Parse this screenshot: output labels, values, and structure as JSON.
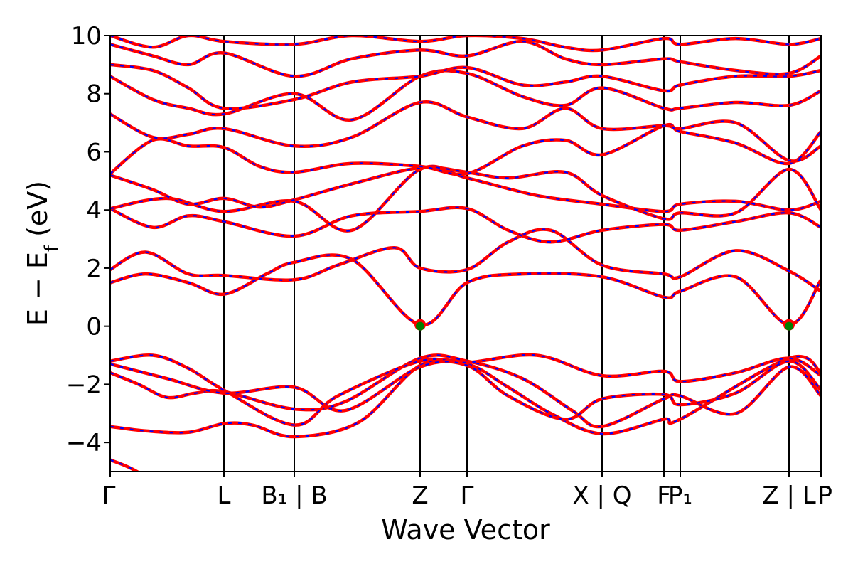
{
  "chart_data": {
    "type": "line",
    "title": "",
    "xlabel": "Wave Vector",
    "ylabel": {
      "main": "E − E",
      "sub": "f",
      "unit": " (eV)"
    },
    "ylim": [
      -5,
      10
    ],
    "yticks": [
      -4,
      -2,
      0,
      2,
      4,
      6,
      8,
      10
    ],
    "xlim": [
      0,
      1
    ],
    "grid": false,
    "legend": "none",
    "colors": {
      "band_main": "#ff0000",
      "band_overlay": "#0000ff",
      "vline": "#000000",
      "point_outer": "#ff0000",
      "point_inner": "#008000"
    },
    "kpoints": [
      {
        "x": 0.0,
        "label": "Γ"
      },
      {
        "x": 0.16,
        "label": "L"
      },
      {
        "x": 0.259,
        "label": "B₁ | B"
      },
      {
        "x": 0.436,
        "label": "Z"
      },
      {
        "x": 0.502,
        "label": "Γ"
      },
      {
        "x": 0.692,
        "label": "X | Q"
      },
      {
        "x": 0.779,
        "label": "F"
      },
      {
        "x": 0.802,
        "label": "P₁"
      },
      {
        "x": 0.955,
        "label": "Z | L"
      },
      {
        "x": 1.0,
        "label": "P"
      }
    ],
    "special_points": [
      {
        "x": 0.436,
        "y": 0.05
      },
      {
        "x": 0.955,
        "y": 0.05
      }
    ],
    "bands": [
      [
        [
          0.0,
          -4.6
        ],
        [
          0.03,
          -4.9
        ],
        [
          0.08,
          -5.6
        ]
      ],
      [
        [
          0.0,
          -3.45
        ],
        [
          0.05,
          -3.6
        ],
        [
          0.11,
          -3.65
        ],
        [
          0.16,
          -3.35
        ],
        [
          0.2,
          -3.4
        ],
        [
          0.259,
          -3.8
        ],
        [
          0.35,
          -3.3
        ],
        [
          0.436,
          -1.35
        ],
        [
          0.502,
          -1.3
        ],
        [
          0.56,
          -2.1
        ],
        [
          0.62,
          -3.0
        ],
        [
          0.692,
          -3.7
        ],
        [
          0.779,
          -3.2
        ],
        [
          0.802,
          -3.2
        ],
        [
          0.955,
          -1.1
        ],
        [
          1.0,
          -1.6
        ]
      ],
      [
        [
          0.0,
          -1.6
        ],
        [
          0.04,
          -2.0
        ],
        [
          0.08,
          -2.45
        ],
        [
          0.12,
          -2.3
        ],
        [
          0.16,
          -2.25
        ],
        [
          0.259,
          -2.85
        ],
        [
          0.33,
          -2.6
        ],
        [
          0.436,
          -1.1
        ],
        [
          0.502,
          -1.2
        ],
        [
          0.58,
          -1.8
        ],
        [
          0.65,
          -2.9
        ],
        [
          0.692,
          -3.45
        ],
        [
          0.779,
          -2.5
        ],
        [
          0.802,
          -2.4
        ],
        [
          0.88,
          -3.0
        ],
        [
          0.955,
          -1.4
        ],
        [
          1.0,
          -2.4
        ]
      ],
      [
        [
          0.0,
          -1.2
        ],
        [
          0.06,
          -1.0
        ],
        [
          0.11,
          -1.45
        ],
        [
          0.16,
          -2.2
        ],
        [
          0.259,
          -3.4
        ],
        [
          0.32,
          -2.4
        ],
        [
          0.436,
          -1.2
        ],
        [
          0.502,
          -1.25
        ],
        [
          0.6,
          -1.0
        ],
        [
          0.692,
          -1.7
        ],
        [
          0.779,
          -1.55
        ],
        [
          0.802,
          -1.9
        ],
        [
          0.88,
          -1.6
        ],
        [
          0.955,
          -1.1
        ],
        [
          1.0,
          -1.7
        ]
      ],
      [
        [
          0.0,
          -1.3
        ],
        [
          0.08,
          -1.8
        ],
        [
          0.16,
          -2.3
        ],
        [
          0.259,
          -2.1
        ],
        [
          0.33,
          -2.9
        ],
        [
          0.436,
          -1.4
        ],
        [
          0.502,
          -1.35
        ],
        [
          0.56,
          -2.4
        ],
        [
          0.64,
          -3.2
        ],
        [
          0.692,
          -2.5
        ],
        [
          0.779,
          -2.35
        ],
        [
          0.802,
          -2.7
        ],
        [
          0.88,
          -2.3
        ],
        [
          0.955,
          -1.2
        ],
        [
          1.0,
          -2.2
        ]
      ],
      [
        [
          0.0,
          1.5
        ],
        [
          0.05,
          1.8
        ],
        [
          0.11,
          1.5
        ],
        [
          0.16,
          1.1
        ],
        [
          0.22,
          1.8
        ],
        [
          0.259,
          2.2
        ],
        [
          0.34,
          2.3
        ],
        [
          0.436,
          0.05
        ],
        [
          0.502,
          1.5
        ],
        [
          0.58,
          1.8
        ],
        [
          0.692,
          1.7
        ],
        [
          0.779,
          1.0
        ],
        [
          0.802,
          1.2
        ],
        [
          0.88,
          1.7
        ],
        [
          0.955,
          0.05
        ],
        [
          1.0,
          1.6
        ]
      ],
      [
        [
          0.0,
          1.95
        ],
        [
          0.05,
          2.55
        ],
        [
          0.11,
          1.8
        ],
        [
          0.16,
          1.75
        ],
        [
          0.259,
          1.6
        ],
        [
          0.32,
          2.1
        ],
        [
          0.4,
          2.7
        ],
        [
          0.436,
          2.0
        ],
        [
          0.502,
          1.95
        ],
        [
          0.56,
          2.9
        ],
        [
          0.62,
          3.3
        ],
        [
          0.692,
          2.1
        ],
        [
          0.779,
          1.8
        ],
        [
          0.802,
          1.7
        ],
        [
          0.88,
          2.6
        ],
        [
          0.955,
          1.9
        ],
        [
          1.0,
          1.2
        ]
      ],
      [
        [
          0.0,
          4.05
        ],
        [
          0.06,
          3.4
        ],
        [
          0.11,
          3.8
        ],
        [
          0.16,
          3.6
        ],
        [
          0.259,
          3.1
        ],
        [
          0.34,
          3.8
        ],
        [
          0.436,
          3.95
        ],
        [
          0.502,
          4.05
        ],
        [
          0.56,
          3.3
        ],
        [
          0.62,
          2.9
        ],
        [
          0.692,
          3.3
        ],
        [
          0.779,
          3.5
        ],
        [
          0.802,
          3.3
        ],
        [
          0.88,
          3.6
        ],
        [
          0.955,
          3.9
        ],
        [
          1.0,
          3.4
        ]
      ],
      [
        [
          0.0,
          4.05
        ],
        [
          0.08,
          4.4
        ],
        [
          0.16,
          3.95
        ],
        [
          0.259,
          4.3
        ],
        [
          0.34,
          3.3
        ],
        [
          0.436,
          5.4
        ],
        [
          0.502,
          5.1
        ],
        [
          0.6,
          4.5
        ],
        [
          0.692,
          4.2
        ],
        [
          0.779,
          3.95
        ],
        [
          0.802,
          4.2
        ],
        [
          0.88,
          4.3
        ],
        [
          0.955,
          4.0
        ],
        [
          1.0,
          4.3
        ]
      ],
      [
        [
          0.0,
          5.2
        ],
        [
          0.06,
          4.7
        ],
        [
          0.11,
          4.2
        ],
        [
          0.16,
          4.4
        ],
        [
          0.21,
          4.1
        ],
        [
          0.259,
          4.35
        ],
        [
          0.34,
          4.9
        ],
        [
          0.436,
          5.45
        ],
        [
          0.502,
          5.3
        ],
        [
          0.56,
          5.1
        ],
        [
          0.64,
          5.3
        ],
        [
          0.692,
          4.5
        ],
        [
          0.779,
          3.7
        ],
        [
          0.802,
          3.9
        ],
        [
          0.88,
          3.9
        ],
        [
          0.955,
          5.4
        ],
        [
          1.0,
          4.0
        ]
      ],
      [
        [
          0.0,
          5.25
        ],
        [
          0.06,
          6.4
        ],
        [
          0.11,
          6.2
        ],
        [
          0.16,
          6.15
        ],
        [
          0.21,
          5.5
        ],
        [
          0.259,
          5.3
        ],
        [
          0.34,
          5.6
        ],
        [
          0.436,
          5.5
        ],
        [
          0.502,
          5.25
        ],
        [
          0.58,
          6.2
        ],
        [
          0.64,
          6.4
        ],
        [
          0.692,
          5.9
        ],
        [
          0.779,
          6.9
        ],
        [
          0.802,
          6.7
        ],
        [
          0.88,
          6.3
        ],
        [
          0.955,
          5.6
        ],
        [
          1.0,
          6.7
        ]
      ],
      [
        [
          0.0,
          7.3
        ],
        [
          0.06,
          6.5
        ],
        [
          0.11,
          6.6
        ],
        [
          0.16,
          6.8
        ],
        [
          0.259,
          6.2
        ],
        [
          0.34,
          6.5
        ],
        [
          0.436,
          7.7
        ],
        [
          0.502,
          7.2
        ],
        [
          0.58,
          6.8
        ],
        [
          0.64,
          7.5
        ],
        [
          0.692,
          6.8
        ],
        [
          0.779,
          6.9
        ],
        [
          0.802,
          6.8
        ],
        [
          0.88,
          7.0
        ],
        [
          0.955,
          5.7
        ],
        [
          1.0,
          6.2
        ]
      ],
      [
        [
          0.0,
          8.6
        ],
        [
          0.06,
          7.8
        ],
        [
          0.11,
          7.5
        ],
        [
          0.16,
          7.3
        ],
        [
          0.259,
          8.0
        ],
        [
          0.34,
          7.1
        ],
        [
          0.436,
          8.6
        ],
        [
          0.502,
          8.7
        ],
        [
          0.58,
          7.9
        ],
        [
          0.64,
          7.6
        ],
        [
          0.692,
          8.2
        ],
        [
          0.779,
          7.5
        ],
        [
          0.802,
          7.5
        ],
        [
          0.88,
          7.7
        ],
        [
          0.955,
          7.6
        ],
        [
          1.0,
          8.1
        ]
      ],
      [
        [
          0.0,
          9.0
        ],
        [
          0.06,
          8.8
        ],
        [
          0.11,
          8.2
        ],
        [
          0.16,
          7.5
        ],
        [
          0.259,
          7.8
        ],
        [
          0.34,
          8.4
        ],
        [
          0.436,
          8.6
        ],
        [
          0.502,
          8.9
        ],
        [
          0.58,
          8.3
        ],
        [
          0.64,
          8.4
        ],
        [
          0.692,
          8.6
        ],
        [
          0.779,
          8.1
        ],
        [
          0.802,
          8.3
        ],
        [
          0.88,
          8.6
        ],
        [
          0.955,
          8.6
        ],
        [
          1.0,
          8.8
        ]
      ],
      [
        [
          0.0,
          9.7
        ],
        [
          0.06,
          9.3
        ],
        [
          0.11,
          9.0
        ],
        [
          0.16,
          9.4
        ],
        [
          0.259,
          8.6
        ],
        [
          0.34,
          9.2
        ],
        [
          0.436,
          9.5
        ],
        [
          0.502,
          9.3
        ],
        [
          0.58,
          9.8
        ],
        [
          0.64,
          9.2
        ],
        [
          0.692,
          9.0
        ],
        [
          0.779,
          9.2
        ],
        [
          0.802,
          9.1
        ],
        [
          0.88,
          8.8
        ],
        [
          0.955,
          8.7
        ],
        [
          1.0,
          9.3
        ]
      ],
      [
        [
          0.0,
          10.0
        ],
        [
          0.06,
          9.6
        ],
        [
          0.11,
          10.0
        ],
        [
          0.16,
          9.8
        ],
        [
          0.259,
          9.7
        ],
        [
          0.34,
          10.0
        ],
        [
          0.436,
          9.8
        ],
        [
          0.502,
          10.0
        ],
        [
          0.58,
          9.9
        ],
        [
          0.64,
          9.6
        ],
        [
          0.692,
          9.5
        ],
        [
          0.779,
          9.9
        ],
        [
          0.802,
          9.7
        ],
        [
          0.88,
          9.9
        ],
        [
          0.955,
          9.7
        ],
        [
          1.0,
          9.9
        ]
      ]
    ]
  }
}
